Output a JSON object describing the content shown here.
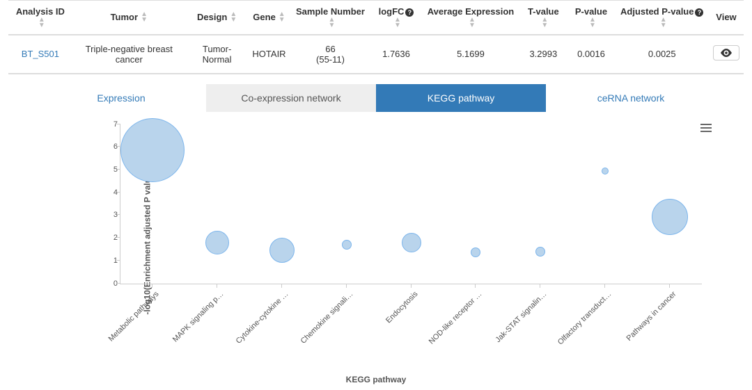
{
  "table": {
    "columns": [
      {
        "label": "Analysis ID",
        "sortable": true,
        "help": false
      },
      {
        "label": "Tumor",
        "sortable": true,
        "help": false
      },
      {
        "label": "Design",
        "sortable": true,
        "help": false
      },
      {
        "label": "Gene",
        "sortable": true,
        "help": false
      },
      {
        "label": "Sample Number",
        "sortable": true,
        "help": false
      },
      {
        "label": "logFC",
        "sortable": true,
        "help": true
      },
      {
        "label": "Average Expression",
        "sortable": true,
        "help": false
      },
      {
        "label": "T-value",
        "sortable": true,
        "help": false
      },
      {
        "label": "P-value",
        "sortable": true,
        "help": false
      },
      {
        "label": "Adjusted P-value",
        "sortable": true,
        "help": true
      },
      {
        "label": "View",
        "sortable": false,
        "help": false
      }
    ],
    "row": {
      "analysis_id": "BT_S501",
      "tumor": "Triple-negative breast cancer",
      "design": "Tumor-Normal",
      "gene": "HOTAIR",
      "sample_number_top": "66",
      "sample_number_bottom": "(55-11)",
      "logfc": "1.7636",
      "avg_expr": "5.1699",
      "t_value": "3.2993",
      "p_value": "0.0016",
      "adj_p_value": "0.0025"
    }
  },
  "tabs": [
    {
      "label": "Expression",
      "style": "plain"
    },
    {
      "label": "Co-expression network",
      "style": "grey"
    },
    {
      "label": "KEGG pathway",
      "style": "active"
    },
    {
      "label": "ceRNA network",
      "style": "plain"
    }
  ],
  "chart": {
    "type": "bubble",
    "ylabel": "-log10(Enrichment adjusted P value)",
    "xlabel": "KEGG pathway",
    "ylim": [
      0,
      7
    ],
    "ytick_step": 1,
    "bubble_fill": "#b9d4ec",
    "bubble_stroke": "#7cb5ec",
    "bubble_stroke_width": 1,
    "background_color": "#ffffff",
    "points": [
      {
        "label": "Metabolic pathways",
        "y": 5.85,
        "r": 46
      },
      {
        "label": "MAPK signaling p…",
        "y": 1.78,
        "r": 17
      },
      {
        "label": "Cytokine-cytokine …",
        "y": 1.45,
        "r": 18
      },
      {
        "label": "Chemokine signali…",
        "y": 1.7,
        "r": 7
      },
      {
        "label": "Endocytosis",
        "y": 1.8,
        "r": 14
      },
      {
        "label": "NOD-like receptor …",
        "y": 1.35,
        "r": 7
      },
      {
        "label": "Jak-STAT signalin…",
        "y": 1.4,
        "r": 7
      },
      {
        "label": "Olfactory transduct…",
        "y": 4.95,
        "r": 5
      },
      {
        "label": "Pathways in cancer",
        "y": 2.92,
        "r": 26
      }
    ]
  },
  "colors": {
    "link": "#337ab7",
    "tab_active_bg": "#337ab7",
    "tab_grey_bg": "#eeeeee"
  }
}
